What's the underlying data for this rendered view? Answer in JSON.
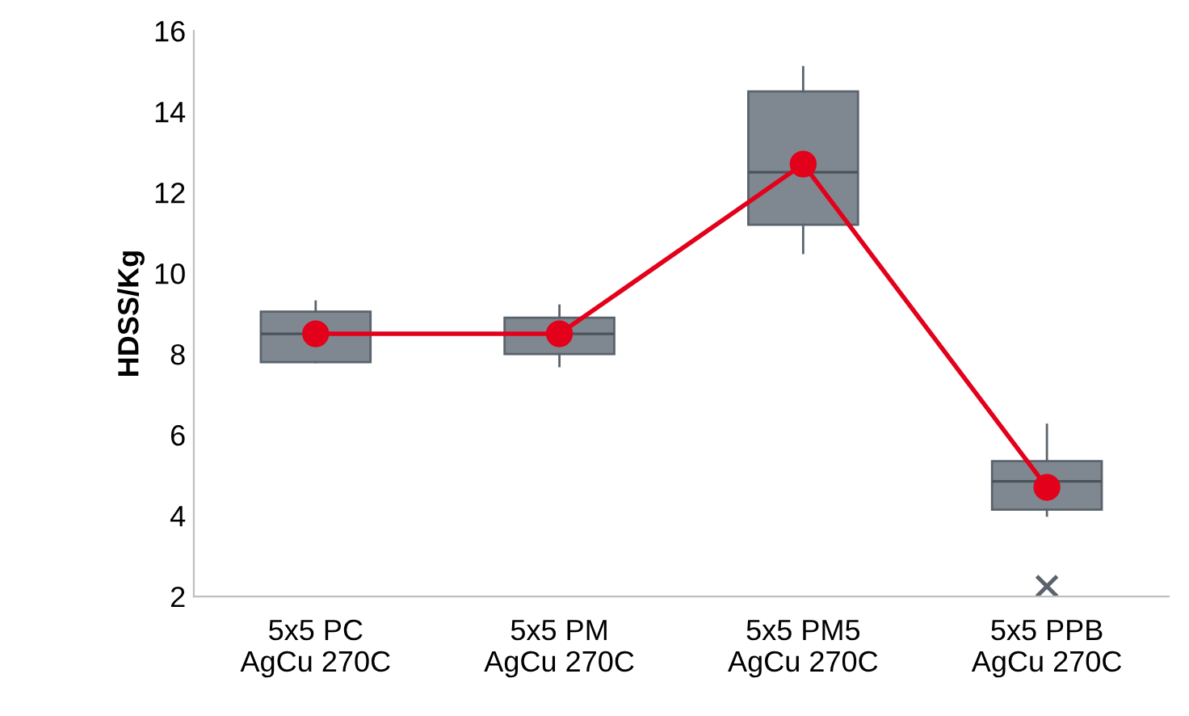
{
  "chart_data": {
    "type": "box",
    "ylabel": "HDSS/Kg",
    "categories": [
      "5x5 PC\nAgCu 270C",
      "5x5 PM\nAgCu 270C",
      "5x5 PM5\nAgCu 270C",
      "5x5 PPB\nAgCu 270C"
    ],
    "series": [
      {
        "type": "box",
        "color": "#7f8891",
        "boxes": [
          {
            "low": 7.8,
            "q1": 7.8,
            "median": 8.5,
            "q3": 9.05,
            "high": 9.3
          },
          {
            "low": 7.7,
            "q1": 8.0,
            "median": 8.5,
            "q3": 8.9,
            "high": 9.2
          },
          {
            "low": 10.5,
            "q1": 11.2,
            "median": 12.5,
            "q3": 14.5,
            "high": 15.1
          },
          {
            "low": 4.0,
            "q1": 4.15,
            "median": 4.85,
            "q3": 5.35,
            "high": 6.25,
            "outliers": [
              2.25
            ]
          }
        ]
      },
      {
        "type": "line",
        "color": "#e3001b",
        "marker": "circle",
        "values": [
          8.5,
          8.5,
          12.7,
          4.7
        ]
      }
    ],
    "ylim": [
      2,
      16
    ],
    "yticks": [
      2,
      4,
      6,
      8,
      10,
      12,
      14,
      16
    ],
    "grid": false
  }
}
